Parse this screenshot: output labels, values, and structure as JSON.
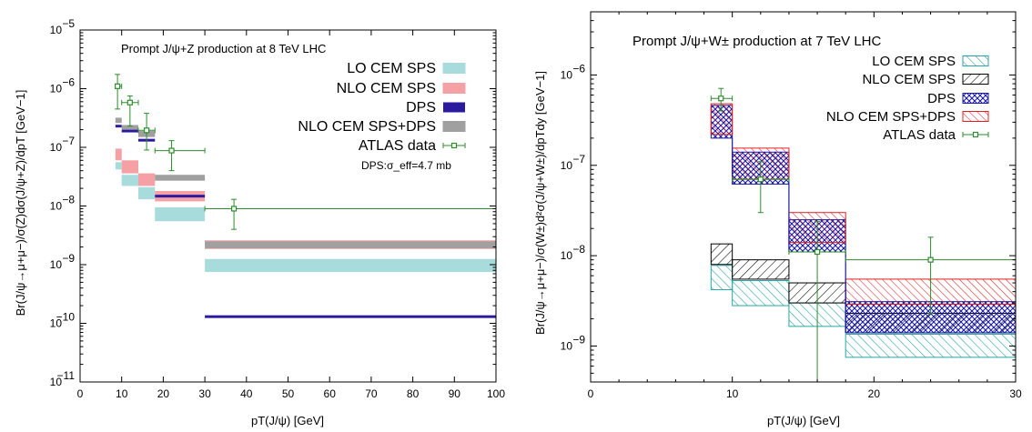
{
  "chart_data": [
    {
      "type": "bar",
      "title": "Prompt J/ψ+Z production at 8 TeV LHC",
      "annotation": "DPS:σ_eff=4.7 mb",
      "xlabel": "pT(J/ψ) [GeV]",
      "ylabel": "Br(J/ψ→μ+μ−)/σ(Z)dσ(J/ψ+Z)/dpT [GeV−1]",
      "x_ticks": [
        "0",
        "10",
        "20",
        "30",
        "40",
        "50",
        "60",
        "70",
        "80",
        "90",
        "100"
      ],
      "y_tick_exponents": [
        -11,
        -10,
        -9,
        -8,
        -7,
        -6,
        -5
      ],
      "xlim": [
        0,
        100
      ],
      "ylim": [
        1e-11,
        1e-05
      ],
      "yscale": "log",
      "legend_position": "top-right",
      "x_bins": [
        [
          8.5,
          10
        ],
        [
          10,
          14
        ],
        [
          14,
          18
        ],
        [
          18,
          30
        ],
        [
          30,
          100
        ]
      ],
      "series": [
        {
          "name": "LO CEM SPS",
          "style": "solid",
          "color": "#a8dcdc",
          "edge": "#a8dcdc",
          "bands": [
            [
              4.2e-08,
              5.6e-08
            ],
            [
              2.2e-08,
              3.4e-08
            ],
            [
              1.3e-08,
              2.1e-08
            ],
            [
              5.5e-09,
              9.5e-09
            ],
            [
              7.5e-10,
              1.25e-09
            ]
          ]
        },
        {
          "name": "NLO CEM SPS",
          "style": "solid",
          "color": "#f4a0a4",
          "edge": "#f4a0a4",
          "bands": [
            [
              6e-08,
              9.5e-08
            ],
            [
              3.6e-08,
              6e-08
            ],
            [
              2.2e-08,
              3.6e-08
            ],
            [
              1.2e-08,
              1.8e-08
            ],
            [
              1.85e-09,
              2.6e-09
            ]
          ]
        },
        {
          "name": "DPS",
          "style": "line",
          "color": "#2a1a9e",
          "edge": "#2a1a9e",
          "bands": [
            [
              2.2e-07,
              2.4e-07
            ],
            [
              1.8e-07,
              2e-07
            ],
            [
              1.25e-07,
              1.4e-07
            ],
            [
              1.4e-08,
              1.55e-08
            ],
            [
              1.25e-10,
              1.35e-10
            ]
          ]
        },
        {
          "name": "NLO CEM SPS+DPS",
          "style": "solid",
          "color": "#a0a0a0",
          "edge": "#a0a0a0",
          "bands": [
            [
              2.6e-07,
              3.2e-07
            ],
            [
              2e-07,
              2.4e-07
            ],
            [
              1.5e-07,
              1.9e-07
            ],
            [
              2.7e-08,
              3.4e-08
            ],
            [
              1.9e-09,
              2.5e-09
            ]
          ]
        }
      ],
      "data_series": {
        "name": "ATLAS data",
        "color": "#2e8b2e",
        "points": [
          {
            "x": 9,
            "xlo": 8.5,
            "xhi": 10,
            "y": 1.1e-06,
            "ylo": 4.5e-07,
            "yhi": 1.75e-06
          },
          {
            "x": 12,
            "xlo": 10,
            "xhi": 14,
            "y": 5.8e-07,
            "ylo": 2.3e-07,
            "yhi": 7.5e-07
          },
          {
            "x": 16,
            "xlo": 14,
            "xhi": 18,
            "y": 1.95e-07,
            "ylo": 9e-08,
            "yhi": 3.8e-07
          },
          {
            "x": 22,
            "xlo": 18,
            "xhi": 30,
            "y": 8.8e-08,
            "ylo": 4e-08,
            "yhi": 1.3e-07
          },
          {
            "x": 37,
            "xlo": 30,
            "xhi": 100,
            "y": 9e-09,
            "ylo": 4e-09,
            "yhi": 1.3e-08
          }
        ]
      }
    },
    {
      "type": "bar",
      "title": "Prompt J/ψ+W± production at 7 TeV LHC",
      "xlabel": "pT(J/ψ) [GeV]",
      "ylabel": "Br(J/ψ→μ+μ−)/σ(W±)d²σ(J/ψ+W±)/dpTdy [GeV−1]",
      "x_ticks": [
        "0",
        "10",
        "20",
        "30"
      ],
      "y_tick_exponents": [
        -9,
        -8,
        -7,
        -6
      ],
      "xlim": [
        0,
        30
      ],
      "ylim": [
        4e-10,
        5e-06
      ],
      "yscale": "log",
      "legend_position": "top-right",
      "x_bins": [
        [
          8.5,
          10
        ],
        [
          10,
          14
        ],
        [
          14,
          18
        ],
        [
          18,
          30
        ]
      ],
      "series": [
        {
          "name": "LO CEM SPS",
          "style": "hatch-forward",
          "color": "#2aa5a5",
          "edge": "#2aa5a5",
          "bands": [
            [
              4.2e-09,
              7.8e-09
            ],
            [
              2.8e-09,
              5.3e-09
            ],
            [
              1.65e-09,
              3e-09
            ],
            [
              7.5e-10,
              1.35e-09
            ]
          ]
        },
        {
          "name": "NLO CEM SPS",
          "style": "hatch-back",
          "color": "#000000",
          "edge": "#000000",
          "bands": [
            [
              8e-09,
              1.35e-08
            ],
            [
              5.5e-09,
              9e-09
            ],
            [
              3e-09,
              5e-09
            ],
            [
              1.4e-09,
              2.3e-09
            ]
          ]
        },
        {
          "name": "DPS",
          "style": "hatch-cross",
          "color": "#1a1aa0",
          "edge": "#1a1aa0",
          "bands": [
            [
              2e-07,
              4.6e-07
            ],
            [
              6.2e-08,
              1.4e-07
            ],
            [
              1.1e-08,
              2.5e-08
            ],
            [
              1.4e-09,
              3.1e-09
            ]
          ]
        },
        {
          "name": "NLO CEM SPS+DPS",
          "style": "hatch-forward",
          "color": "#e02020",
          "edge": "#e02020",
          "bands": [
            [
              2.2e-07,
              4.8e-07
            ],
            [
              7e-08,
              1.55e-07
            ],
            [
              1.4e-08,
              3e-08
            ],
            [
              2.9e-09,
              5.5e-09
            ]
          ]
        }
      ],
      "data_series": {
        "name": "ATLAS data",
        "color": "#2e8b2e",
        "points": [
          {
            "x": 9.2,
            "xlo": 8.5,
            "xhi": 10,
            "y": 5.5e-07,
            "ylo": 4e-07,
            "yhi": 7.1e-07
          },
          {
            "x": 12,
            "xlo": 10,
            "xhi": 14,
            "y": 7e-08,
            "ylo": 3e-08,
            "yhi": 1.1e-07
          },
          {
            "x": 16,
            "xlo": 14,
            "xhi": 18,
            "y": 1.1e-08,
            "ylo": 4e-10,
            "yhi": 2.4e-08
          },
          {
            "x": 24,
            "xlo": 18,
            "xhi": 30,
            "y": 9e-09,
            "ylo": 2.3e-09,
            "yhi": 1.6e-08
          }
        ]
      }
    }
  ]
}
